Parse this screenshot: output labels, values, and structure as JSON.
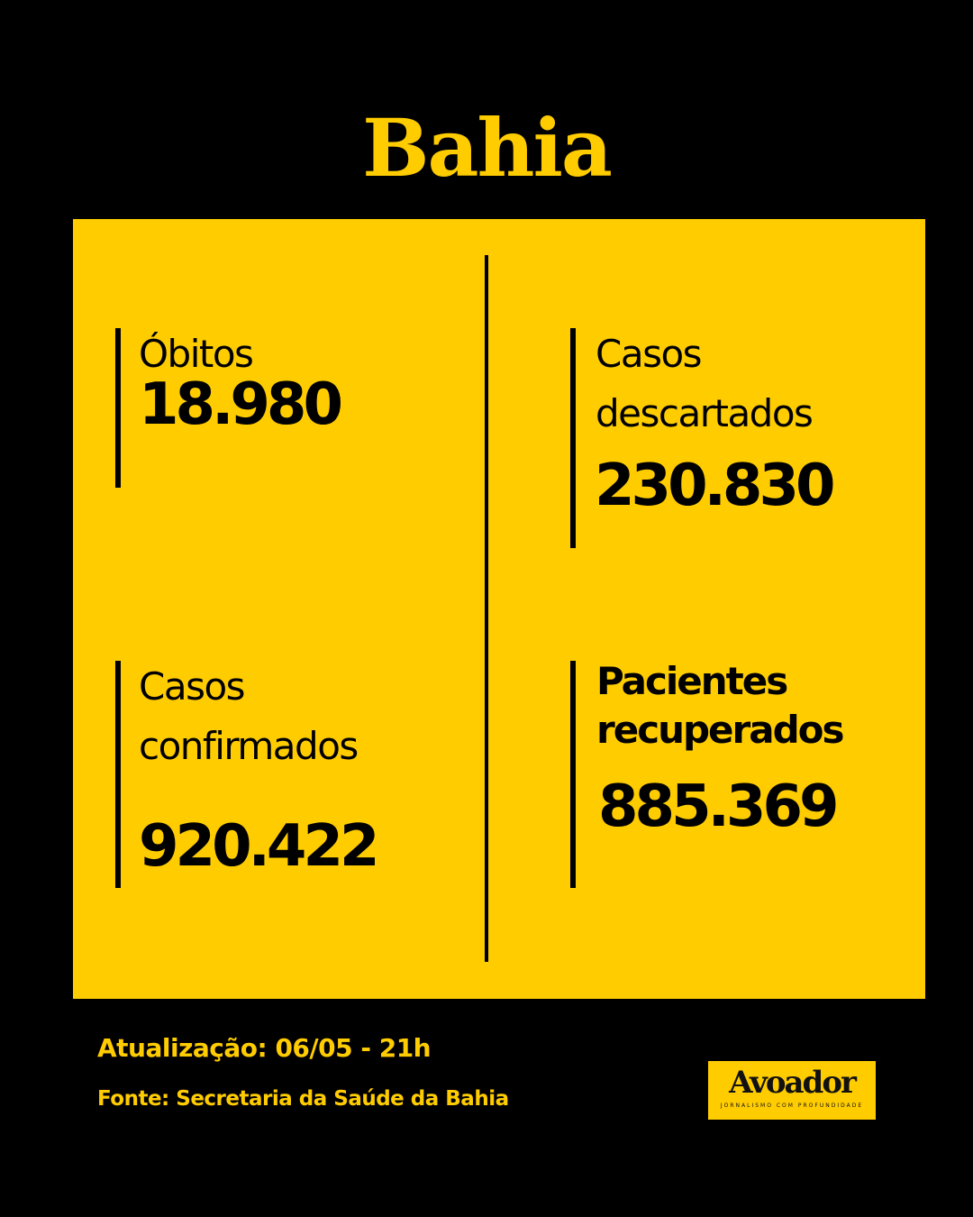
{
  "title": "Bahia",
  "colors": {
    "accent": "#FFCC00",
    "background": "#000000"
  },
  "stats": [
    {
      "label": "Óbitos",
      "value": "18.980"
    },
    {
      "label": "Casos descartados",
      "value": "230.830"
    },
    {
      "label": "Casos confirmados",
      "value": "920.422"
    },
    {
      "label": "Pacientes recuperados",
      "value": "885.369"
    }
  ],
  "footer": {
    "update": "Atualização: 06/05 - 21h",
    "source": "Fonte: Secretaria da Saúde da Bahia"
  },
  "logo": {
    "name": "Avoador",
    "tagline": "JORNALISMO COM PROFUNDIDADE"
  }
}
